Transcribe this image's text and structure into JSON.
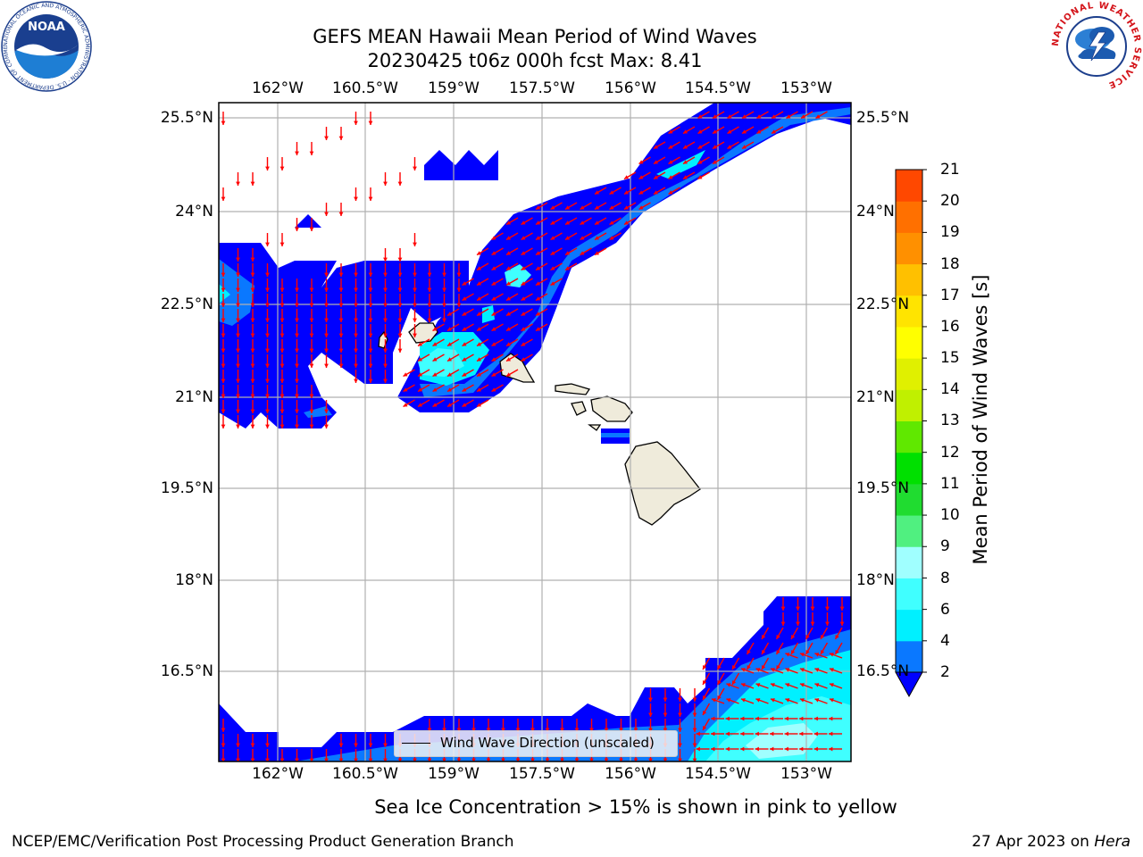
{
  "title": {
    "line1": "GEFS MEAN Hawaii Mean Period of Wind Waves",
    "line2": "20230425 t06z 000h fcst   Max: 8.41"
  },
  "map": {
    "lon_range": [
      -163.0,
      -152.2
    ],
    "lat_range": [
      15.0,
      25.75
    ],
    "lon_ticks": [
      "162°W",
      "160.5°W",
      "159°W",
      "157.5°W",
      "156°W",
      "154.5°W",
      "153°W"
    ],
    "lat_ticks": [
      "25.5°N",
      "24°N",
      "22.5°N",
      "21°N",
      "19.5°N",
      "18°N",
      "16.5°N"
    ],
    "gridlines": true,
    "islands": [
      "Niihau",
      "Kauai",
      "Oahu",
      "Molokai",
      "Lanai",
      "Maui",
      "Kahoolawe",
      "Hawaii"
    ],
    "land_color": "#efebdb",
    "arrow_color": "#ff0000"
  },
  "legend": {
    "label": "Wind Wave Direction (unscaled)"
  },
  "colorbar": {
    "label": "Mean Period of Wind Waves [s]",
    "ticks": [
      "2",
      "4",
      "6",
      "8",
      "9",
      "10",
      "11",
      "12",
      "13",
      "14",
      "15",
      "16",
      "17",
      "18",
      "19",
      "20",
      "21"
    ],
    "colors": [
      "#0a78ff",
      "#00f0ff",
      "#40ffff",
      "#a0ffff",
      "#50f080",
      "#20dc30",
      "#00e000",
      "#60e800",
      "#c0f000",
      "#e0f000",
      "#ffff00",
      "#ffe400",
      "#ffc000",
      "#ff9000",
      "#ff7000",
      "#ff4800",
      "#ff1800"
    ],
    "extend_color": "#0000ff"
  },
  "caption": "Sea Ice Concentration > 15% is shown in pink to yellow",
  "footer": {
    "left": "NCEP/EMC/Verification Post Processing Product Generation Branch",
    "right_date": "27 Apr 2023 on ",
    "right_machine": "Hera"
  },
  "logos": {
    "noaa_text": "NOAA",
    "noaa_ring": "NATIONAL OCEANIC AND ATMOSPHERIC ADMINISTRATION · U.S. DEPARTMENT OF COMMERCE",
    "nws_ring": "NATIONAL WEATHER SERVICE"
  }
}
